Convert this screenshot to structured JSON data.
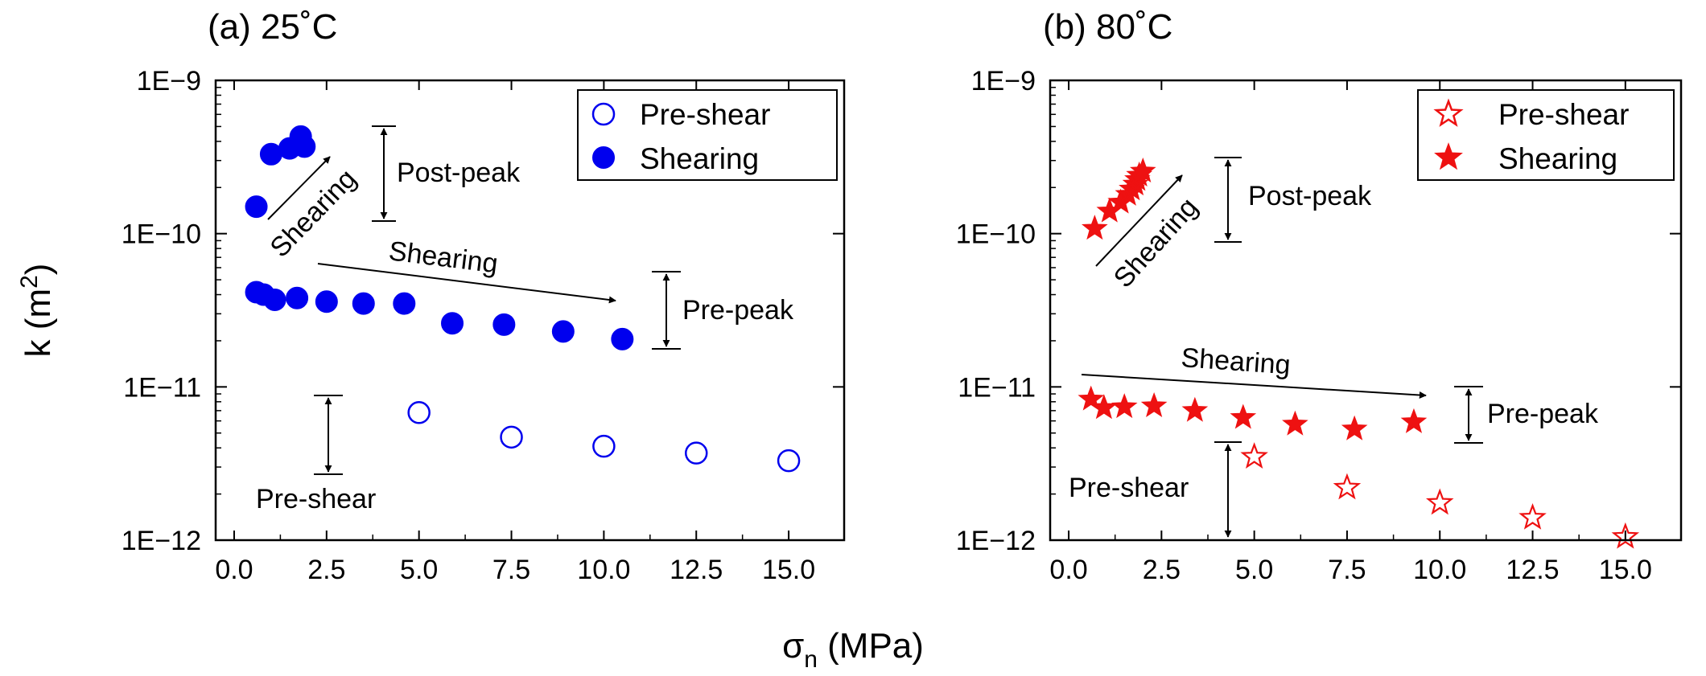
{
  "figure": {
    "xlabel": "σn (MPa)",
    "xlabel_main": "σ",
    "xlabel_sub": "n",
    "xlabel_unit": " (MPa)",
    "ylabel": "k (m2)",
    "ylabel_main": "k (m",
    "ylabel_sup": "2",
    "ylabel_close": ")"
  },
  "chart_data": [
    {
      "type": "scatter",
      "title": "(a) 25˚C",
      "xlabel": "σn (MPa)",
      "ylabel": "k (m2)",
      "xlim": [
        -0.5,
        16.5
      ],
      "ylim": [
        1e-12,
        1e-09
      ],
      "yscale": "log",
      "x_ticks": [
        "0.0",
        "2.5",
        "5.0",
        "7.5",
        "10.0",
        "12.5",
        "15.0"
      ],
      "x_tick_values": [
        0,
        2.5,
        5,
        7.5,
        10,
        12.5,
        15
      ],
      "y_ticks": [
        "1E−12",
        "1E−11",
        "1E−10",
        "1E−9"
      ],
      "y_tick_values": [
        1e-12,
        1e-11,
        1e-10,
        1e-09
      ],
      "color": "#0000ee",
      "marker": "circle",
      "legend_position": "top-right",
      "series": [
        {
          "name": "Pre-shear",
          "fill": "open",
          "x": [
            5.0,
            7.5,
            10.0,
            12.5,
            15.0
          ],
          "y": [
            6.8e-12,
            4.7e-12,
            4.1e-12,
            3.7e-12,
            3.3e-12
          ]
        },
        {
          "name": "Shearing",
          "fill": "filled",
          "x": [
            0.6,
            0.8,
            1.1,
            1.7,
            2.5,
            3.5,
            4.6,
            5.9,
            7.3,
            8.9,
            10.5,
            0.6,
            1.0,
            1.5,
            1.8,
            1.9
          ],
          "y": [
            4.15e-11,
            4e-11,
            3.7e-11,
            3.8e-11,
            3.6e-11,
            3.5e-11,
            3.5e-11,
            2.6e-11,
            2.55e-11,
            2.3e-11,
            2.05e-11,
            1.5e-10,
            3.3e-10,
            3.6e-10,
            4.3e-10,
            3.7e-10
          ]
        }
      ],
      "annotations": {
        "shearing_diag": "Shearing",
        "shearing_horiz": "Shearing",
        "post_peak": "Post-peak",
        "pre_peak": "Pre-peak",
        "pre_shear": "Pre-shear"
      }
    },
    {
      "type": "scatter",
      "title": "(b) 80˚C",
      "xlabel": "σn (MPa)",
      "ylabel": "k (m2)",
      "xlim": [
        -0.5,
        16.5
      ],
      "ylim": [
        1e-12,
        1e-09
      ],
      "yscale": "log",
      "x_ticks": [
        "0.0",
        "2.5",
        "5.0",
        "7.5",
        "10.0",
        "12.5",
        "15.0"
      ],
      "x_tick_values": [
        0,
        2.5,
        5,
        7.5,
        10,
        12.5,
        15
      ],
      "y_ticks": [
        "1E−12",
        "1E−11",
        "1E−10",
        "1E−9"
      ],
      "y_tick_values": [
        1e-12,
        1e-11,
        1e-10,
        1e-09
      ],
      "color": "#ee1111",
      "marker": "star",
      "legend_position": "top-right",
      "series": [
        {
          "name": "Pre-shear",
          "fill": "open",
          "x": [
            5.0,
            7.5,
            10.0,
            12.5,
            15.0
          ],
          "y": [
            3.5e-12,
            2.2e-12,
            1.75e-12,
            1.4e-12,
            1.05e-12
          ]
        },
        {
          "name": "Shearing",
          "fill": "filled",
          "x": [
            0.6,
            0.95,
            1.5,
            2.3,
            3.4,
            4.7,
            6.1,
            7.7,
            9.3,
            0.7,
            1.1,
            1.4,
            1.6,
            1.7,
            1.8,
            1.85,
            1.9,
            2.0
          ],
          "y": [
            8.3e-12,
            7.3e-12,
            7.4e-12,
            7.5e-12,
            7e-12,
            6.3e-12,
            5.7e-12,
            5.3e-12,
            5.9e-12,
            1.08e-10,
            1.4e-10,
            1.6e-10,
            1.8e-10,
            1.95e-10,
            2.1e-10,
            2.25e-10,
            2.4e-10,
            2.55e-10
          ]
        }
      ],
      "annotations": {
        "shearing_diag": "Shearing",
        "shearing_horiz": "Shearing",
        "post_peak": "Post-peak",
        "pre_peak": "Pre-peak",
        "pre_shear": "Pre-shear"
      }
    }
  ]
}
